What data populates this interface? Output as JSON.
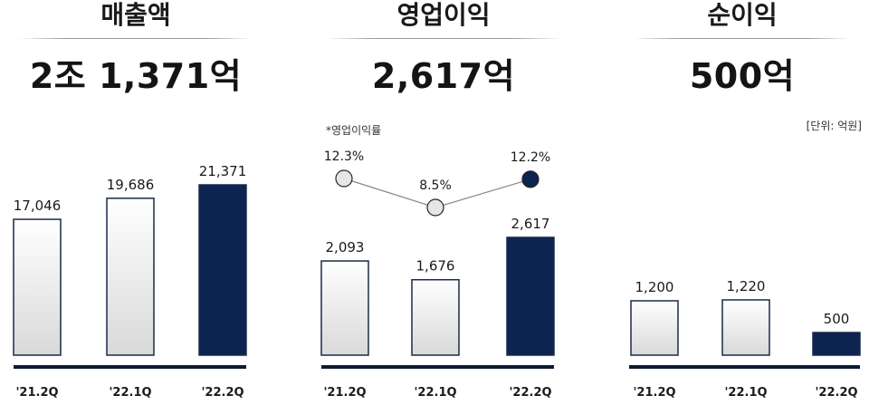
{
  "sales": {
    "title": "매출액",
    "total": "2조 1,371억"
  },
  "op_profit": {
    "title": "영업이익",
    "total": "2,617억",
    "margin_label": "*영업이익률"
  },
  "net_income": {
    "title": "순이익",
    "total": "500억",
    "unit": "[단위: 억원]"
  },
  "colors": {
    "highlight": "#0d2350",
    "bar_border": "#1a2a48",
    "bar_light_top": "#ffffff",
    "bar_light_bottom": "#d9d9d9",
    "axis": "#0d1a33"
  },
  "chart_data": [
    {
      "type": "bar",
      "categories": [
        "'21.2Q",
        "'22.1Q",
        "'22.2Q"
      ],
      "values": [
        17046,
        19686,
        21371
      ],
      "value_labels": [
        "17,046",
        "19,686",
        "21,371"
      ],
      "title": "매출액",
      "xlabel": "",
      "ylabel": "",
      "ylim": [
        0,
        21371
      ],
      "highlight_index": 2
    },
    {
      "type": "bar",
      "categories": [
        "'21.2Q",
        "'22.1Q",
        "'22.2Q"
      ],
      "values": [
        2093,
        1676,
        2617
      ],
      "value_labels": [
        "2,093",
        "1,676",
        "2,617"
      ],
      "title": "영업이익",
      "xlabel": "",
      "ylabel": "",
      "ylim": [
        0,
        2617
      ],
      "highlight_index": 2,
      "line_series": {
        "name": "*영업이익률",
        "values": [
          12.3,
          8.5,
          12.2
        ],
        "value_labels": [
          "12.3%",
          "8.5%",
          "12.2%"
        ]
      }
    },
    {
      "type": "bar",
      "categories": [
        "'21.2Q",
        "'22.1Q",
        "'22.2Q"
      ],
      "values": [
        1200,
        1220,
        500
      ],
      "value_labels": [
        "1,200",
        "1,220",
        "500"
      ],
      "title": "순이익",
      "xlabel": "",
      "ylabel": "",
      "ylim": [
        0,
        1220
      ],
      "highlight_index": 2
    }
  ]
}
